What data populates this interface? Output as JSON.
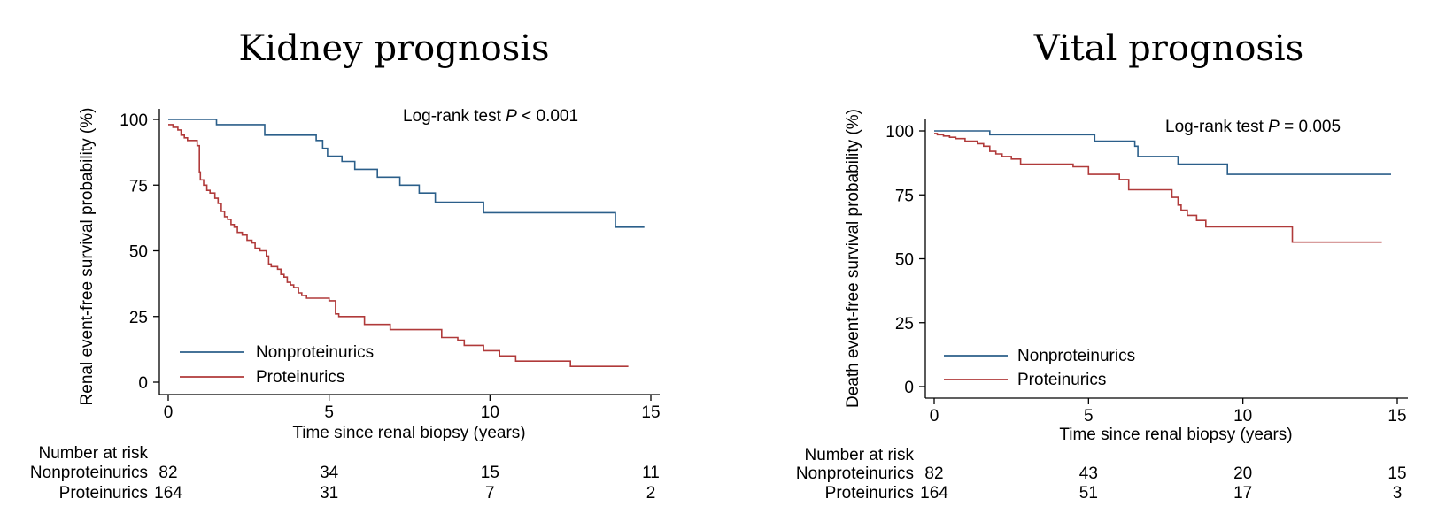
{
  "chart_data": [
    {
      "type": "line",
      "title": "Kidney prognosis",
      "xlabel": "Time since renal biopsy (years)",
      "ylabel": "Renal event-free survival probability (%)",
      "xlim": [
        0,
        15
      ],
      "ylim": [
        0,
        100
      ],
      "xticks": [
        "0",
        "5",
        "10",
        "15"
      ],
      "yticks": [
        "0",
        "25",
        "50",
        "75",
        "100"
      ],
      "grid": false,
      "legend_position": "bottom-left",
      "annotation": {
        "prefix": "Log-rank test ",
        "italic": "P",
        "suffix": " < 0.001"
      },
      "colors": {
        "Nonproteinurics": "#2b5f8a",
        "Proteinurics": "#b03a3a"
      },
      "series": [
        {
          "name": "Nonproteinurics",
          "x": [
            0,
            1.5,
            3.0,
            4.6,
            4.8,
            4.95,
            5.4,
            5.8,
            6.5,
            7.2,
            7.8,
            8.3,
            9.8,
            13.9,
            14.8
          ],
          "y": [
            100,
            98,
            94,
            92,
            89,
            86,
            84,
            81,
            78,
            75,
            72,
            68.5,
            64.5,
            59,
            59
          ]
        },
        {
          "name": "Proteinurics",
          "x": [
            0,
            0.15,
            0.3,
            0.4,
            0.5,
            0.6,
            0.9,
            0.97,
            1.0,
            1.1,
            1.2,
            1.3,
            1.45,
            1.55,
            1.65,
            1.75,
            1.85,
            1.95,
            2.05,
            2.15,
            2.3,
            2.45,
            2.6,
            2.7,
            2.85,
            3.05,
            3.12,
            3.2,
            3.4,
            3.5,
            3.6,
            3.7,
            3.8,
            3.9,
            4.05,
            4.15,
            4.3,
            5.0,
            5.2,
            5.3,
            6.1,
            6.9,
            7.2,
            8.5,
            9.0,
            9.2,
            9.8,
            10.3,
            10.8,
            12.5,
            14.3
          ],
          "y": [
            98,
            97,
            96,
            94,
            93,
            92,
            90,
            80,
            77,
            75,
            73,
            72,
            70,
            68,
            65,
            63,
            62,
            60,
            59,
            57,
            56,
            54,
            53,
            51,
            50,
            48,
            45,
            44,
            43,
            41,
            40,
            38,
            37,
            36,
            34,
            33,
            32,
            31,
            26,
            25,
            22,
            20,
            20,
            17,
            16,
            14,
            12,
            10,
            8,
            6,
            6
          ]
        }
      ],
      "risk_table": {
        "header": "Number at risk",
        "rows": [
          {
            "label": "Nonproteinurics",
            "values": [
              "82",
              "34",
              "15",
              "11"
            ]
          },
          {
            "label": "Proteinurics",
            "values": [
              "164",
              "31",
              "7",
              "2"
            ]
          }
        ]
      }
    },
    {
      "type": "line",
      "title": "Vital prognosis",
      "xlabel": "Time since renal biopsy (years)",
      "ylabel": "Death event-free survival probability (%)",
      "xlim": [
        0,
        15
      ],
      "ylim": [
        0,
        100
      ],
      "xticks": [
        "0",
        "5",
        "10",
        "15"
      ],
      "yticks": [
        "0",
        "25",
        "50",
        "75",
        "100"
      ],
      "grid": false,
      "legend_position": "bottom-left",
      "annotation": {
        "prefix": "Log-rank test ",
        "italic": "P",
        "suffix": " = 0.005"
      },
      "colors": {
        "Nonproteinurics": "#2b5f8a",
        "Proteinurics": "#b03a3a"
      },
      "series": [
        {
          "name": "Nonproteinurics",
          "x": [
            0,
            1.8,
            5.2,
            6.5,
            6.6,
            7.9,
            9.5,
            14.8
          ],
          "y": [
            100,
            98.5,
            96,
            94,
            90,
            87,
            83,
            83
          ]
        },
        {
          "name": "Proteinurics",
          "x": [
            0,
            0.1,
            0.3,
            0.5,
            0.7,
            1.0,
            1.4,
            1.6,
            1.8,
            2.0,
            2.2,
            2.5,
            2.8,
            4.5,
            5.0,
            6.0,
            6.3,
            7.7,
            7.9,
            8.0,
            8.2,
            8.5,
            8.8,
            11.6,
            14.5
          ],
          "y": [
            99,
            98.5,
            98,
            97.5,
            97,
            96,
            95,
            94,
            92,
            91,
            90,
            89,
            87,
            86,
            83,
            81,
            77,
            74,
            71,
            69,
            67,
            65,
            62.5,
            56.5,
            56.5
          ]
        }
      ],
      "risk_table": {
        "header": "Number at risk",
        "rows": [
          {
            "label": "Nonproteinurics",
            "values": [
              "82",
              "43",
              "20",
              "15"
            ]
          },
          {
            "label": "Proteinurics",
            "values": [
              "164",
              "51",
              "17",
              "3"
            ]
          }
        ]
      }
    }
  ]
}
